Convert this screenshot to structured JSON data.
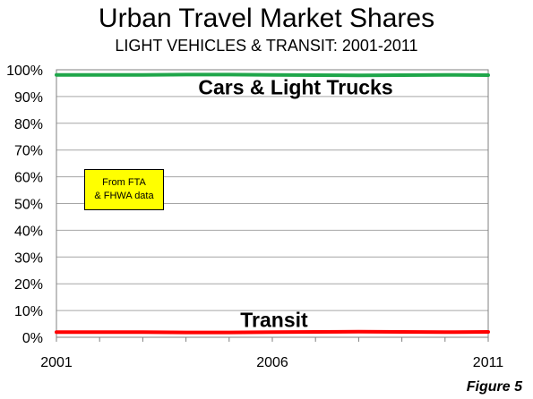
{
  "chart_data": {
    "type": "line",
    "title": "Urban Travel Market Shares",
    "subtitle": "LIGHT VEHICLES & TRANSIT: 2001-2011",
    "x": [
      2001,
      2002,
      2003,
      2004,
      2005,
      2006,
      2007,
      2008,
      2009,
      2010,
      2011
    ],
    "x_tick_labels": [
      "2001",
      "2006",
      "2011"
    ],
    "y_tick_labels": [
      "0%",
      "10%",
      "20%",
      "30%",
      "40%",
      "50%",
      "60%",
      "70%",
      "80%",
      "90%",
      "100%"
    ],
    "ylim": [
      0,
      100
    ],
    "y_unit": "%",
    "grid": true,
    "series": [
      {
        "name": "Cars & Light Trucks",
        "color": "#1fa64a",
        "values": [
          98.1,
          98.1,
          98.1,
          98.2,
          98.2,
          98.1,
          98.0,
          97.9,
          98.0,
          98.1,
          98.0
        ]
      },
      {
        "name": "Transit",
        "color": "#ff0000",
        "values": [
          1.9,
          1.9,
          1.9,
          1.8,
          1.8,
          1.9,
          2.0,
          2.1,
          2.0,
          1.9,
          2.0
        ]
      }
    ],
    "annotation": "From  FTA & FHWA  data",
    "annotation_lines": [
      "From  FTA",
      "& FHWA  data"
    ],
    "footer": "Figure 5"
  }
}
